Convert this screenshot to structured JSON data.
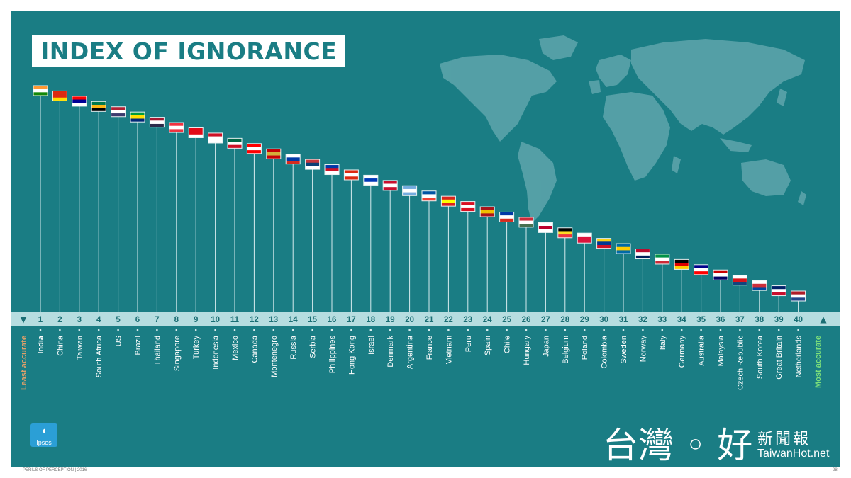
{
  "slide": {
    "title": "INDEX OF IGNORANCE",
    "footer": "PERILS OF PERCEPTION | 2016",
    "page_number": "28",
    "logo_text": "Ipsos"
  },
  "watermark": {
    "main": "台灣 ◦ 好",
    "sub": "新聞報",
    "site": "TaiwanHot.net"
  },
  "colors": {
    "background": "#1a7d84",
    "axis_bar": "#b6dde0",
    "rank_number": "#1a6e74",
    "least_accurate_label": "#e0a06a",
    "most_accurate_label": "#7de07a",
    "country_label": "#ffffff"
  },
  "chart_data": {
    "type": "bar",
    "title": "INDEX OF IGNORANCE",
    "ranks": [
      1,
      2,
      3,
      4,
      5,
      6,
      7,
      8,
      9,
      10,
      11,
      12,
      13,
      14,
      15,
      16,
      17,
      18,
      19,
      20,
      21,
      22,
      23,
      24,
      25,
      26,
      27,
      28,
      29,
      30,
      31,
      32,
      33,
      34,
      35,
      36,
      37,
      38,
      39,
      40
    ],
    "categories": [
      "India",
      "China",
      "Taiwan",
      "South Africa",
      "US",
      "Brazil",
      "Thailand",
      "Singapore",
      "Turkey",
      "Indonesia",
      "Mexico",
      "Canada",
      "Montenegro",
      "Russia",
      "Serbia",
      "Philippines",
      "Hong Kong",
      "Israel",
      "Denmark",
      "Argentina",
      "France",
      "Vietnam",
      "Peru",
      "Spain",
      "Chile",
      "Hungary",
      "Japan",
      "Belgium",
      "Poland",
      "Colombia",
      "Sweden",
      "Norway",
      "Italy",
      "Germany",
      "Australia",
      "Malaysia",
      "Czech Republic",
      "South Korea",
      "Great Britain",
      "Netherlands"
    ],
    "values": [
      40,
      39,
      38,
      37,
      36,
      35,
      34,
      33,
      32,
      31,
      30,
      29,
      28,
      27,
      26,
      25,
      24,
      23,
      22,
      21,
      20,
      19,
      18,
      17,
      16,
      15,
      14,
      13,
      12,
      11,
      10,
      9,
      8,
      7,
      6,
      5,
      4,
      3,
      2,
      1
    ],
    "axis_left_label": "Least accurate",
    "axis_right_label": "Most accurate",
    "axis_left_arrow": "▼",
    "axis_right_arrow": "▲",
    "grid": false,
    "legend": "none"
  }
}
